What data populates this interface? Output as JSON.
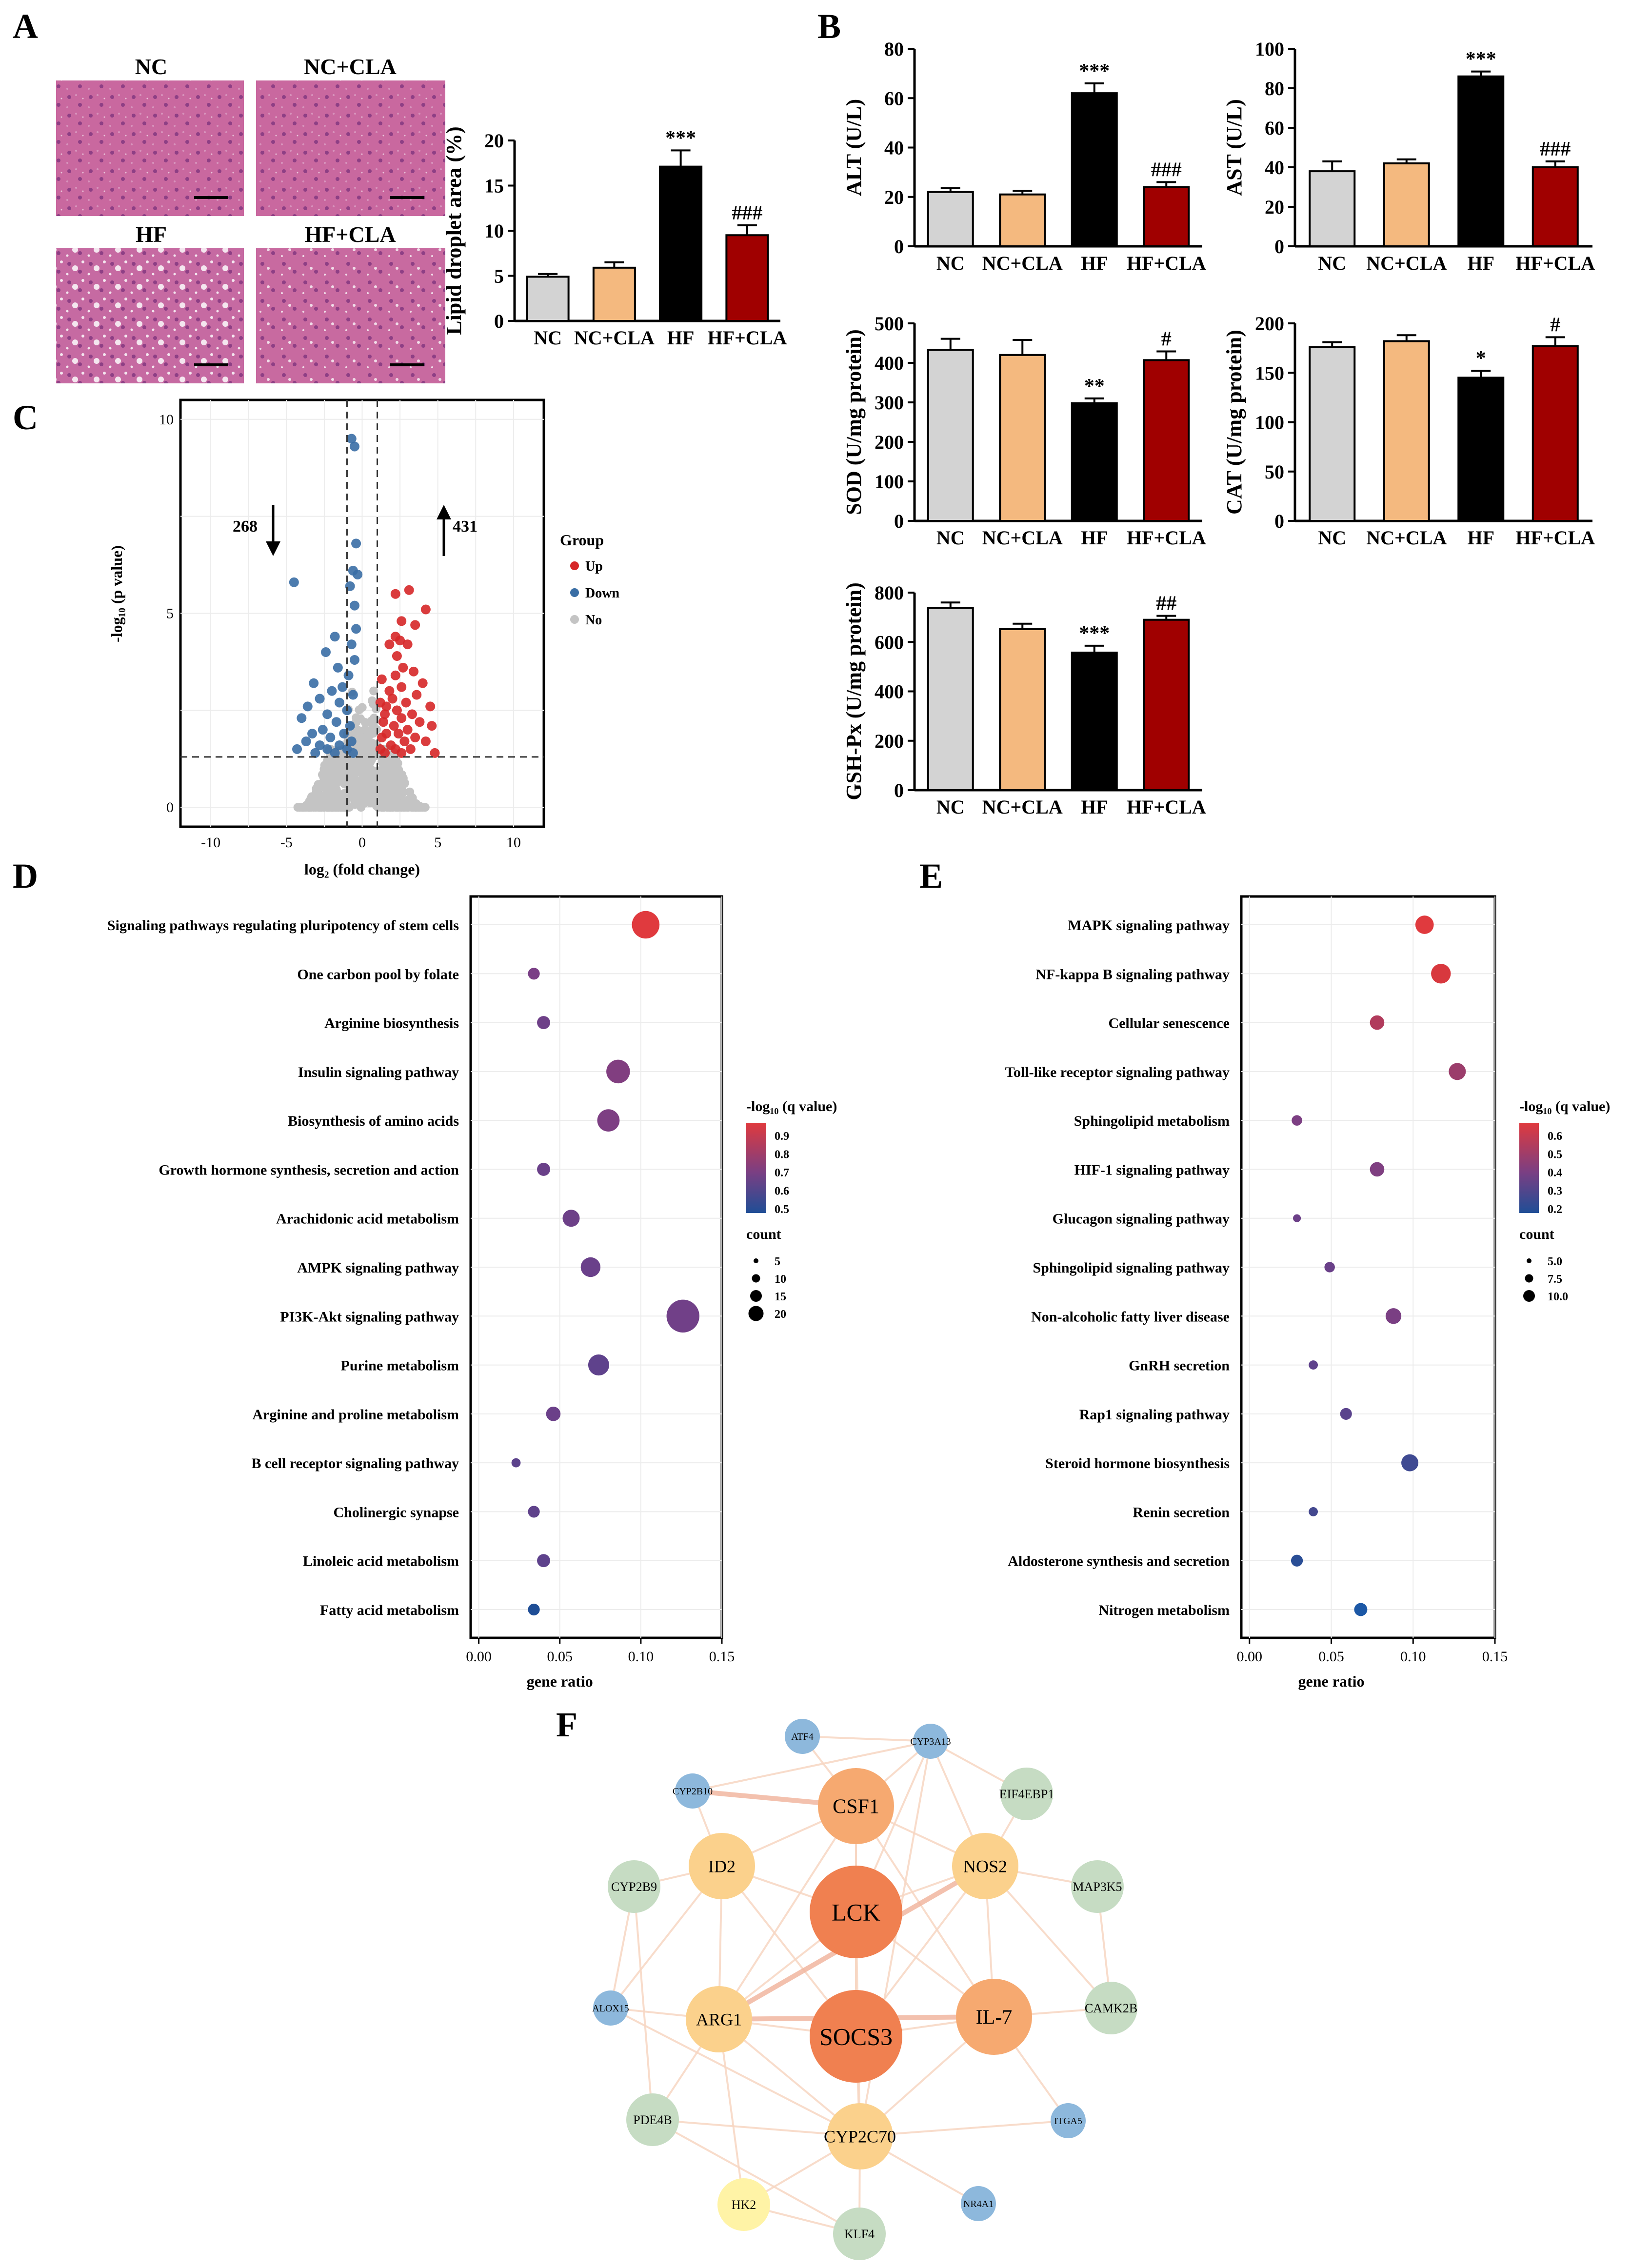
{
  "panels": {
    "A": {
      "letter": "A",
      "images": [
        "NC",
        "NC+CLA",
        "HF",
        "HF+CLA"
      ],
      "chart": {
        "ylabel": "Lipid droplet area (%)"
      }
    },
    "B": {
      "letter": "B"
    },
    "C": {
      "letter": "C"
    },
    "D": {
      "letter": "D"
    },
    "E": {
      "letter": "E"
    },
    "F": {
      "letter": "F"
    }
  },
  "colors": {
    "NC": "#d3d3d3",
    "NC+CLA": "#f4b97f",
    "HF": "#000000",
    "HF+CLA": "#a00000"
  },
  "chart_data": [
    {
      "id": "lipid",
      "type": "bar",
      "ylabel": "Lipid droplet area (%)",
      "categories": [
        "NC",
        "NC+CLA",
        "HF",
        "HF+CLA"
      ],
      "values": [
        4.9,
        5.9,
        17.1,
        9.5
      ],
      "errors": [
        0.3,
        0.6,
        1.8,
        1.1
      ],
      "annotations": [
        "",
        "",
        "***",
        "###"
      ],
      "ylim": [
        0,
        20
      ],
      "yticks": [
        0,
        5,
        10,
        15,
        20
      ]
    },
    {
      "id": "alt",
      "type": "bar",
      "ylabel": "ALT (U/L)",
      "categories": [
        "NC",
        "NC+CLA",
        "HF",
        "HF+CLA"
      ],
      "values": [
        22,
        21,
        62,
        24
      ],
      "errors": [
        1.5,
        1.5,
        4,
        2
      ],
      "annotations": [
        "",
        "",
        "***",
        "###"
      ],
      "ylim": [
        0,
        80
      ],
      "yticks": [
        0,
        20,
        40,
        60,
        80
      ]
    },
    {
      "id": "ast",
      "type": "bar",
      "ylabel": "AST (U/L)",
      "categories": [
        "NC",
        "NC+CLA",
        "HF",
        "HF+CLA"
      ],
      "values": [
        38,
        42,
        86,
        40
      ],
      "errors": [
        5,
        2,
        2.5,
        3
      ],
      "annotations": [
        "",
        "",
        "***",
        "###"
      ],
      "ylim": [
        0,
        100
      ],
      "yticks": [
        0,
        20,
        40,
        60,
        80,
        100
      ]
    },
    {
      "id": "sod",
      "type": "bar",
      "ylabel": "SOD (U/mg protein)",
      "categories": [
        "NC",
        "NC+CLA",
        "HF",
        "HF+CLA"
      ],
      "values": [
        433,
        420,
        298,
        407
      ],
      "errors": [
        28,
        38,
        12,
        22
      ],
      "annotations": [
        "",
        "",
        "**",
        "#"
      ],
      "ylim": [
        0,
        500
      ],
      "yticks": [
        0,
        100,
        200,
        300,
        400,
        500
      ]
    },
    {
      "id": "cat",
      "type": "bar",
      "ylabel": "CAT (U/mg protein)",
      "categories": [
        "NC",
        "NC+CLA",
        "HF",
        "HF+CLA"
      ],
      "values": [
        176,
        182,
        145,
        177
      ],
      "errors": [
        5,
        6,
        7,
        9
      ],
      "annotations": [
        "",
        "",
        "*",
        "#"
      ],
      "ylim": [
        0,
        200
      ],
      "yticks": [
        0,
        50,
        100,
        150,
        200
      ]
    },
    {
      "id": "gsh",
      "type": "bar",
      "ylabel": "GSH-Px (U/mg protein)",
      "categories": [
        "NC",
        "NC+CLA",
        "HF",
        "HF+CLA"
      ],
      "values": [
        738,
        652,
        557,
        690
      ],
      "errors": [
        22,
        22,
        28,
        16
      ],
      "annotations": [
        "",
        "",
        "***",
        "##"
      ],
      "ylim": [
        0,
        800
      ],
      "yticks": [
        0,
        200,
        400,
        600,
        800
      ]
    },
    {
      "id": "volcano",
      "type": "scatter",
      "xlabel": "log₂ (fold change)",
      "ylabel": "-log₁₀ (p value)",
      "xlim": [
        -12,
        12
      ],
      "ylim": [
        -0.5,
        10.5
      ],
      "xticks": [
        -10,
        -5,
        0,
        5,
        10
      ],
      "yticks": [
        0,
        5,
        10
      ],
      "thresholds": {
        "x": [
          -1,
          1
        ],
        "y": 1.3
      },
      "legend": {
        "title": "Group",
        "items": [
          "Up",
          "Down",
          "No"
        ]
      },
      "counts": {
        "down": "268",
        "up": "431"
      },
      "series": [
        {
          "name": "Up",
          "color": "#d62728",
          "points": [
            [
              2.2,
              5.5
            ],
            [
              3.1,
              5.6
            ],
            [
              4.2,
              5.1
            ],
            [
              3.5,
              4.7
            ],
            [
              2.6,
              4.8
            ],
            [
              2.2,
              4.4
            ],
            [
              2.5,
              4.3
            ],
            [
              3.0,
              4.2
            ],
            [
              2.3,
              3.9
            ],
            [
              2.7,
              3.6
            ],
            [
              3.4,
              3.5
            ],
            [
              2.2,
              3.4
            ],
            [
              4.0,
              3.2
            ],
            [
              2.6,
              3.1
            ],
            [
              1.8,
              3.0
            ],
            [
              3.6,
              2.9
            ],
            [
              2.0,
              2.8
            ],
            [
              2.9,
              2.7
            ],
            [
              1.6,
              2.6
            ],
            [
              4.5,
              2.6
            ],
            [
              2.3,
              2.5
            ],
            [
              3.3,
              2.4
            ],
            [
              1.5,
              2.4
            ],
            [
              2.6,
              2.3
            ],
            [
              3.8,
              2.2
            ],
            [
              1.4,
              2.2
            ],
            [
              2.1,
              2.1
            ],
            [
              4.6,
              2.1
            ],
            [
              3.0,
              2.0
            ],
            [
              1.6,
              1.9
            ],
            [
              2.4,
              1.9
            ],
            [
              3.5,
              1.8
            ],
            [
              1.3,
              1.8
            ],
            [
              2.8,
              1.7
            ],
            [
              4.2,
              1.7
            ],
            [
              1.9,
              1.6
            ],
            [
              1.2,
              1.5
            ],
            [
              3.2,
              1.5
            ],
            [
              2.2,
              1.5
            ],
            [
              1.5,
              1.4
            ],
            [
              4.8,
              1.4
            ],
            [
              2.6,
              1.4
            ],
            [
              1.8,
              4.2
            ],
            [
              1.3,
              3.3
            ],
            [
              1.2,
              2.7
            ]
          ]
        },
        {
          "name": "Down",
          "color": "#3a6ea5",
          "points": [
            [
              -0.7,
              9.5
            ],
            [
              -0.5,
              9.3
            ],
            [
              -0.4,
              6.8
            ],
            [
              -0.6,
              6.1
            ],
            [
              -0.3,
              6.0
            ],
            [
              -4.5,
              5.8
            ],
            [
              -0.8,
              5.7
            ],
            [
              -0.5,
              5.2
            ],
            [
              -0.4,
              4.6
            ],
            [
              -1.8,
              4.4
            ],
            [
              -0.7,
              4.2
            ],
            [
              -2.4,
              4.0
            ],
            [
              -0.5,
              3.8
            ],
            [
              -1.6,
              3.6
            ],
            [
              -0.9,
              3.4
            ],
            [
              -3.2,
              3.2
            ],
            [
              -1.3,
              3.1
            ],
            [
              -2.0,
              3.0
            ],
            [
              -0.6,
              2.9
            ],
            [
              -2.8,
              2.8
            ],
            [
              -1.5,
              2.7
            ],
            [
              -3.6,
              2.6
            ],
            [
              -1.0,
              2.5
            ],
            [
              -2.3,
              2.4
            ],
            [
              -4.0,
              2.3
            ],
            [
              -1.7,
              2.2
            ],
            [
              -0.8,
              2.1
            ],
            [
              -2.6,
              2.0
            ],
            [
              -3.3,
              1.9
            ],
            [
              -1.2,
              1.9
            ],
            [
              -2.1,
              1.8
            ],
            [
              -0.7,
              1.7
            ],
            [
              -3.7,
              1.7
            ],
            [
              -1.5,
              1.6
            ],
            [
              -2.8,
              1.6
            ],
            [
              -1.0,
              1.5
            ],
            [
              -2.3,
              1.5
            ],
            [
              -4.3,
              1.5
            ],
            [
              -1.8,
              1.4
            ],
            [
              -0.6,
              1.4
            ],
            [
              -3.1,
              1.4
            ]
          ]
        }
      ]
    },
    {
      "id": "kegg-d",
      "type": "scatter",
      "xlabel": "gene ratio",
      "xlim": [
        -0.005,
        0.15
      ],
      "xticks": [
        0.0,
        0.05,
        0.1,
        0.15
      ],
      "xtick_labels": [
        "0.00",
        "0.05",
        "0.10",
        "0.15"
      ],
      "color_legend": {
        "title": "-log₁₀ (q value)",
        "ticks": [
          "0.9",
          "0.8",
          "0.7",
          "0.6",
          "0.5"
        ]
      },
      "size_legend": {
        "title": "count",
        "items": [
          "5",
          "10",
          "15",
          "20"
        ]
      },
      "categories": [
        "Signaling pathways regulating pluripotency of stem cells",
        "One carbon pool by folate",
        "Arginine biosynthesis",
        "Insulin signaling pathway",
        "Biosynthesis of amino acids",
        "Growth hormone synthesis, secretion and action",
        "Arachidonic acid metabolism",
        "AMPK signaling pathway",
        "PI3K-Akt signaling pathway",
        "Purine metabolism",
        "Arginine and proline metabolism",
        "B cell receptor signaling pathway",
        "Cholinergic synapse",
        "Linoleic acid metabolism",
        "Fatty acid metabolism"
      ],
      "gene_ratio": [
        0.103,
        0.034,
        0.04,
        0.086,
        0.08,
        0.04,
        0.057,
        0.069,
        0.126,
        0.074,
        0.046,
        0.023,
        0.034,
        0.04,
        0.034
      ],
      "count": [
        18,
        6,
        7,
        15,
        14,
        7,
        10,
        12,
        22,
        13,
        8,
        4,
        6,
        7,
        6
      ],
      "q_color": [
        "#e03a3e",
        "#7a3f86",
        "#6e4088",
        "#813e80",
        "#7d3f83",
        "#6a4089",
        "#6d4088",
        "#6a408a",
        "#714088",
        "#5f428c",
        "#6b4089",
        "#5c428c",
        "#5f428b",
        "#5e428c",
        "#1f4e96"
      ]
    },
    {
      "id": "kegg-e",
      "type": "scatter",
      "xlabel": "gene ratio",
      "xlim": [
        -0.005,
        0.15
      ],
      "xticks": [
        0.0,
        0.05,
        0.1,
        0.15
      ],
      "xtick_labels": [
        "0.00",
        "0.05",
        "0.10",
        "0.15"
      ],
      "color_legend": {
        "title": "-log₁₀ (q value)",
        "ticks": [
          "0.6",
          "0.5",
          "0.4",
          "0.3",
          "0.2"
        ]
      },
      "size_legend": {
        "title": "count",
        "items": [
          "5.0",
          "7.5",
          "10.0"
        ]
      },
      "categories": [
        "MAPK signaling pathway",
        "NF-kappa B signaling pathway",
        "Cellular senescence",
        "Toll-like receptor signaling pathway",
        "Sphingolipid metabolism",
        "HIF-1 signaling pathway",
        "Glucagon signaling pathway",
        "Sphingolipid signaling pathway",
        "Non-alcoholic fatty liver disease",
        "GnRH secretion",
        "Rap1 signaling pathway",
        "Steroid hormone biosynthesis",
        "Renin secretion",
        "Aldosterone synthesis and secretion",
        "Nitrogen metabolism"
      ],
      "gene_ratio": [
        0.107,
        0.117,
        0.078,
        0.127,
        0.029,
        0.078,
        0.029,
        0.049,
        0.088,
        0.039,
        0.059,
        0.098,
        0.039,
        0.029,
        0.068
      ],
      "count": [
        11,
        12,
        8,
        10,
        5,
        8,
        3,
        5,
        9,
        4,
        6,
        10,
        4,
        6,
        7
      ],
      "q_color": [
        "#e03a3e",
        "#d8383e",
        "#b13b5c",
        "#9b3d6b",
        "#7c3f83",
        "#7f3f81",
        "#6c4088",
        "#6a4089",
        "#7a3f83",
        "#5f428c",
        "#5a438d",
        "#3f4a92",
        "#44488f",
        "#2a4e96",
        "#1c58a6"
      ]
    }
  ],
  "network": {
    "nodes": [
      {
        "label": "LCK",
        "size": "xl",
        "color": "#f08050"
      },
      {
        "label": "SOCS3",
        "size": "xl",
        "color": "#f08050"
      },
      {
        "label": "CSF1",
        "size": "l",
        "color": "#f6a970"
      },
      {
        "label": "IL-7",
        "size": "l",
        "color": "#f6a970"
      },
      {
        "label": "ID2",
        "size": "m",
        "color": "#fbd18c"
      },
      {
        "label": "NOS2",
        "size": "m",
        "color": "#fbd18c"
      },
      {
        "label": "ARG1",
        "size": "m",
        "color": "#fbd18c"
      },
      {
        "label": "CYP2C70",
        "size": "m",
        "color": "#fbd18c"
      },
      {
        "label": "HK2",
        "size": "s",
        "color": "#fff3a6"
      },
      {
        "label": "EIF4EBP1",
        "size": "s",
        "color": "#c6dcc3"
      },
      {
        "label": "CYP2B9",
        "size": "s",
        "color": "#c6dcc3"
      },
      {
        "label": "MAP3K5",
        "size": "s",
        "color": "#c6dcc3"
      },
      {
        "label": "CAMK2B",
        "size": "s",
        "color": "#c6dcc3"
      },
      {
        "label": "PDE4B",
        "size": "s",
        "color": "#c6dcc3"
      },
      {
        "label": "KLF4",
        "size": "s",
        "color": "#c6dcc3"
      },
      {
        "label": "ATF4",
        "size": "xs",
        "color": "#8db8dc"
      },
      {
        "label": "CYP3A13",
        "size": "xs",
        "color": "#8db8dc"
      },
      {
        "label": "CYP2B10",
        "size": "xs",
        "color": "#8db8dc"
      },
      {
        "label": "ALOX15",
        "size": "xs",
        "color": "#8db8dc"
      },
      {
        "label": "ITGA5",
        "size": "xs",
        "color": "#8db8dc"
      },
      {
        "label": "NR4A1",
        "size": "xs",
        "color": "#8db8dc"
      }
    ],
    "edges": [
      [
        "LCK",
        "SOCS3"
      ],
      [
        "LCK",
        "CSF1"
      ],
      [
        "LCK",
        "IL-7"
      ],
      [
        "LCK",
        "ID2"
      ],
      [
        "LCK",
        "NOS2"
      ],
      [
        "LCK",
        "ARG1"
      ],
      [
        "LCK",
        "CYP2C70"
      ],
      [
        "SOCS3",
        "CSF1"
      ],
      [
        "SOCS3",
        "IL-7"
      ],
      [
        "SOCS3",
        "ARG1"
      ],
      [
        "SOCS3",
        "CYP2C70"
      ],
      [
        "SOCS3",
        "NOS2"
      ],
      [
        "SOCS3",
        "ID2"
      ],
      [
        "CSF1",
        "ID2"
      ],
      [
        "CSF1",
        "NOS2"
      ],
      [
        "CSF1",
        "ARG1"
      ],
      [
        "CSF1",
        "IL-7"
      ],
      [
        "CSF1",
        "ATF4"
      ],
      [
        "CSF1",
        "CYP3A13"
      ],
      [
        "CSF1",
        "CYP2B10"
      ],
      [
        "ARG1",
        "NOS2"
      ],
      [
        "ARG1",
        "CYP2C70"
      ],
      [
        "ARG1",
        "ALOX15"
      ],
      [
        "ARG1",
        "PDE4B"
      ],
      [
        "ARG1",
        "HK2"
      ],
      [
        "ARG1",
        "IL-7"
      ],
      [
        "NOS2",
        "IL-7"
      ],
      [
        "NOS2",
        "MAP3K5"
      ],
      [
        "NOS2",
        "EIF4EBP1"
      ],
      [
        "NOS2",
        "CYP3A13"
      ],
      [
        "NOS2",
        "CAMK2B"
      ],
      [
        "IL-7",
        "CAMK2B"
      ],
      [
        "IL-7",
        "ITGA5"
      ],
      [
        "IL-7",
        "CYP2C70"
      ],
      [
        "CYP2C70",
        "KLF4"
      ],
      [
        "CYP2C70",
        "PDE4B"
      ],
      [
        "CYP2C70",
        "ALOX15"
      ],
      [
        "CYP2C70",
        "ITGA5"
      ],
      [
        "CYP2C70",
        "NR4A1"
      ],
      [
        "CYP2C70",
        "HK2"
      ],
      [
        "ID2",
        "CYP2B9"
      ],
      [
        "ID2",
        "CYP2B10"
      ],
      [
        "ID2",
        "ALOX15"
      ],
      [
        "ID2",
        "ARG1"
      ],
      [
        "CYP3A13",
        "CYP2B10"
      ],
      [
        "CYP3A13",
        "ATF4"
      ],
      [
        "CYP3A13",
        "EIF4EBP1"
      ],
      [
        "CYP3A13",
        "CYP2C70"
      ],
      [
        "CYP3A13",
        "LCK"
      ],
      [
        "CYP2B9",
        "ALOX15"
      ],
      [
        "CYP2B9",
        "PDE4B"
      ],
      [
        "MAP3K5",
        "CAMK2B"
      ],
      [
        "PDE4B",
        "KLF4"
      ],
      [
        "HK2",
        "KLF4"
      ]
    ]
  }
}
